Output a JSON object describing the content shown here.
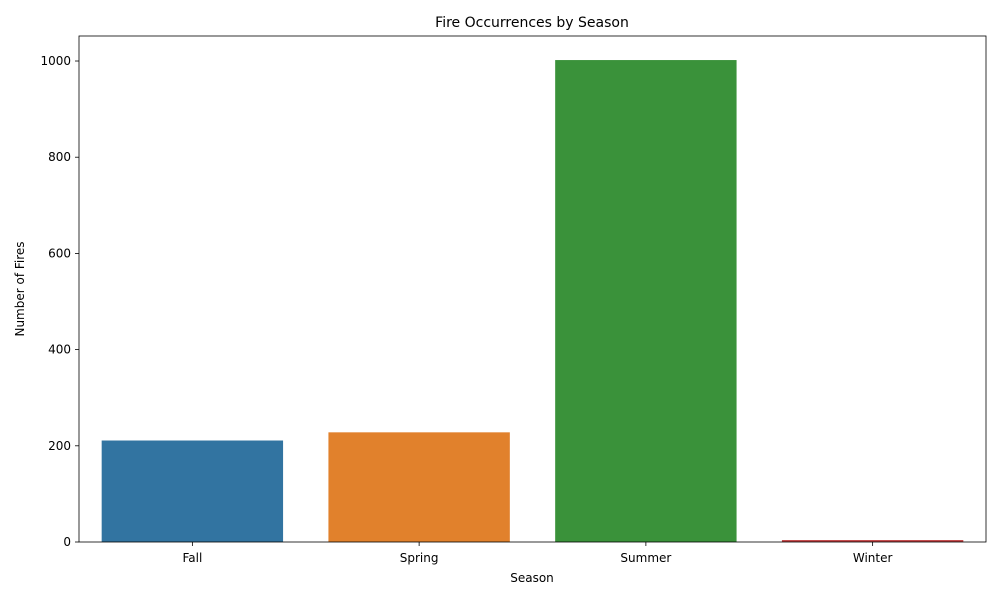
{
  "chart_data": {
    "type": "bar",
    "title": "Fire Occurrences by Season",
    "xlabel": "Season",
    "ylabel": "Number of Fires",
    "categories": [
      "Fall",
      "Spring",
      "Summer",
      "Winter"
    ],
    "values": [
      211,
      228,
      1002,
      4
    ],
    "colors": [
      "#3274a1",
      "#e1812c",
      "#3a923a",
      "#c03d3e"
    ],
    "ylim": [
      0,
      1052
    ],
    "yticks": [
      0,
      200,
      400,
      600,
      800,
      1000
    ],
    "grid": false,
    "legend": "none"
  }
}
